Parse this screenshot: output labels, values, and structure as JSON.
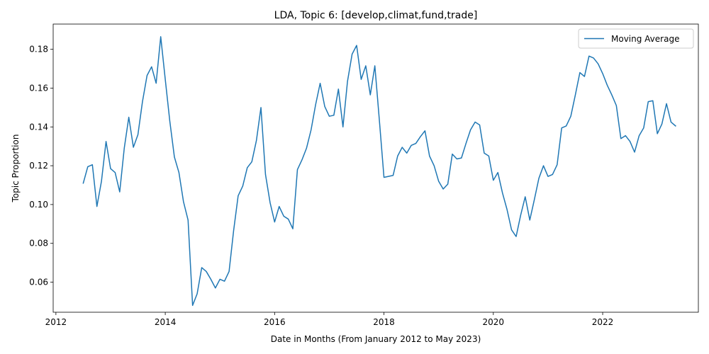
{
  "chart_data": {
    "type": "line",
    "title": "LDA, Topic 6: [develop,climat,fund,trade]",
    "xlabel": "Date in Months (From January 2012 to May 2023)",
    "ylabel": "Topic Proportion",
    "xlim": [
      2011.95,
      2023.75
    ],
    "ylim": [
      0.0445,
      0.193
    ],
    "xticks": [
      2012,
      2014,
      2016,
      2018,
      2020,
      2022
    ],
    "xtick_labels": [
      "2012",
      "2014",
      "2016",
      "2018",
      "2020",
      "2022"
    ],
    "yticks": [
      0.06,
      0.08,
      0.1,
      0.12,
      0.14,
      0.16,
      0.18
    ],
    "ytick_labels": [
      "0.06",
      "0.08",
      "0.10",
      "0.12",
      "0.14",
      "0.16",
      "0.18"
    ],
    "grid": false,
    "legend_position": "top-right",
    "line_color": "#1f77b4",
    "series": [
      {
        "name": "Moving Average",
        "x": [
          2012.5,
          2012.583,
          2012.667,
          2012.75,
          2012.833,
          2012.917,
          2013.0,
          2013.083,
          2013.167,
          2013.25,
          2013.333,
          2013.417,
          2013.5,
          2013.583,
          2013.667,
          2013.75,
          2013.833,
          2013.917,
          2014.0,
          2014.083,
          2014.167,
          2014.25,
          2014.333,
          2014.417,
          2014.5,
          2014.583,
          2014.667,
          2014.75,
          2014.833,
          2014.917,
          2015.0,
          2015.083,
          2015.167,
          2015.25,
          2015.333,
          2015.417,
          2015.5,
          2015.583,
          2015.667,
          2015.75,
          2015.833,
          2015.917,
          2016.0,
          2016.083,
          2016.167,
          2016.25,
          2016.333,
          2016.417,
          2016.5,
          2016.583,
          2016.667,
          2016.75,
          2016.833,
          2016.917,
          2017.0,
          2017.083,
          2017.167,
          2017.25,
          2017.333,
          2017.417,
          2017.5,
          2017.583,
          2017.667,
          2017.75,
          2017.833,
          2017.917,
          2018.0,
          2018.083,
          2018.167,
          2018.25,
          2018.333,
          2018.417,
          2018.5,
          2018.583,
          2018.667,
          2018.75,
          2018.833,
          2018.917,
          2019.0,
          2019.083,
          2019.167,
          2019.25,
          2019.333,
          2019.417,
          2019.5,
          2019.583,
          2019.667,
          2019.75,
          2019.833,
          2019.917,
          2020.0,
          2020.083,
          2020.167,
          2020.25,
          2020.333,
          2020.417,
          2020.5,
          2020.583,
          2020.667,
          2020.75,
          2020.833,
          2020.917,
          2021.0,
          2021.083,
          2021.167,
          2021.25,
          2021.333,
          2021.417,
          2021.5,
          2021.583,
          2021.667,
          2021.75,
          2021.833,
          2021.917,
          2022.0,
          2022.083,
          2022.167,
          2022.25,
          2022.333,
          2022.417,
          2022.5,
          2022.583,
          2022.667,
          2022.75,
          2022.833,
          2022.917,
          2023.0,
          2023.083,
          2023.167,
          2023.25,
          2023.333
        ],
        "values": [
          0.111,
          0.1195,
          0.1205,
          0.099,
          0.112,
          0.1325,
          0.1185,
          0.1165,
          0.1065,
          0.129,
          0.145,
          0.1295,
          0.136,
          0.153,
          0.1665,
          0.171,
          0.1625,
          0.1865,
          0.1645,
          0.143,
          0.1245,
          0.1165,
          0.1015,
          0.092,
          0.048,
          0.054,
          0.0675,
          0.0655,
          0.0615,
          0.057,
          0.0615,
          0.0605,
          0.0655,
          0.0865,
          0.1045,
          0.1095,
          0.119,
          0.122,
          0.133,
          0.15,
          0.1155,
          0.101,
          0.091,
          0.099,
          0.094,
          0.0925,
          0.0875,
          0.118,
          0.123,
          0.129,
          0.1385,
          0.1515,
          0.1625,
          0.1505,
          0.1455,
          0.146,
          0.1595,
          0.14,
          0.1635,
          0.1775,
          0.182,
          0.1645,
          0.1715,
          0.1565,
          0.1715,
          0.143,
          0.114,
          0.1145,
          0.115,
          0.125,
          0.1295,
          0.1265,
          0.1305,
          0.1315,
          0.135,
          0.138,
          0.125,
          0.12,
          0.112,
          0.108,
          0.1105,
          0.126,
          0.1235,
          0.124,
          0.1315,
          0.1385,
          0.1425,
          0.141,
          0.1265,
          0.125,
          0.1125,
          0.1165,
          0.106,
          0.0975,
          0.087,
          0.0835,
          0.0945,
          0.104,
          0.092,
          0.1025,
          0.1135,
          0.12,
          0.1145,
          0.1155,
          0.1205,
          0.1395,
          0.1405,
          0.1455,
          0.1565,
          0.168,
          0.166,
          0.1765,
          0.1755,
          0.1725,
          0.1675,
          0.1615,
          0.1565,
          0.151,
          0.134,
          0.1355,
          0.1325,
          0.127,
          0.1355,
          0.1395,
          0.153,
          0.1535,
          0.1365,
          0.1415,
          0.152,
          0.1425,
          0.1405
        ]
      }
    ]
  }
}
